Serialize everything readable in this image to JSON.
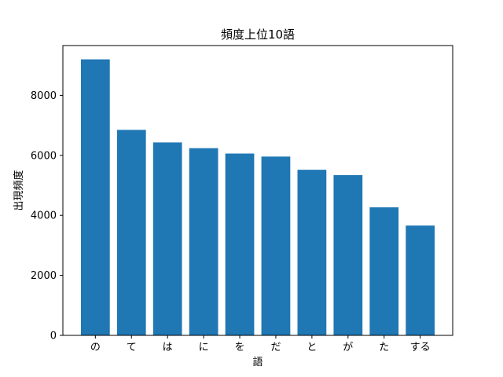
{
  "chart_data": {
    "type": "bar",
    "title": "頻度上位10語",
    "xlabel": "語",
    "ylabel": "出現頻度",
    "categories": [
      "の",
      "て",
      "は",
      "に",
      "を",
      "だ",
      "と",
      "が",
      "た",
      "する"
    ],
    "values": [
      9200,
      6850,
      6430,
      6240,
      6060,
      5960,
      5520,
      5340,
      4270,
      3660
    ],
    "ylim": [
      0,
      9660
    ],
    "yticks": [
      0,
      2000,
      4000,
      6000,
      8000
    ],
    "grid": false,
    "legend": "none",
    "bar_color": "#1f77b4"
  }
}
